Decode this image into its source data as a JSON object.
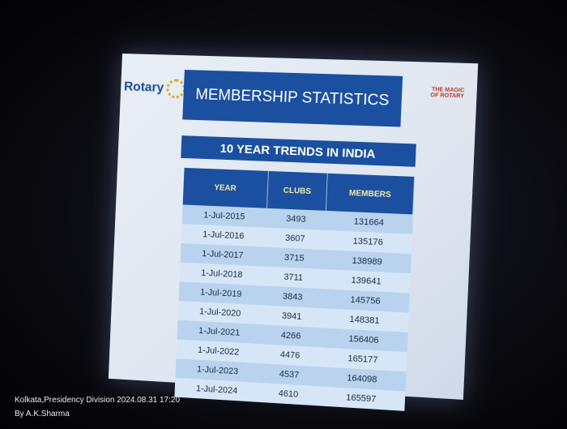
{
  "slide": {
    "logo": "Rotary",
    "title": "MEMBERSHIP STATISTICS",
    "badge": [
      "THE MAGIC",
      "OF ROTARY"
    ],
    "subtitle": "10 YEAR TRENDS IN INDIA",
    "table": {
      "header": [
        "YEAR",
        "CLUBS",
        "MEMBERS"
      ],
      "rows": [
        [
          "1-Jul-2015",
          "3493",
          "131664"
        ],
        [
          "1-Jul-2016",
          "3607",
          "135176"
        ],
        [
          "1-Jul-2017",
          "3715",
          "138989"
        ],
        [
          "1-Jul-2018",
          "3711",
          "139641"
        ],
        [
          "1-Jul-2019",
          "3843",
          "145756"
        ],
        [
          "1-Jul-2020",
          "3941",
          "148381"
        ],
        [
          "1-Jul-2021",
          "4266",
          "156406"
        ],
        [
          "1-Jul-2022",
          "4476",
          "165177"
        ],
        [
          "1-Jul-2023",
          "4537",
          "164098"
        ],
        [
          "1-Jul-2024",
          "4610",
          "165597"
        ]
      ]
    }
  },
  "watermark": [
    "Kolkata,Presidency Division  2024.08.31 17:20",
    "By A.K.Sharma"
  ]
}
